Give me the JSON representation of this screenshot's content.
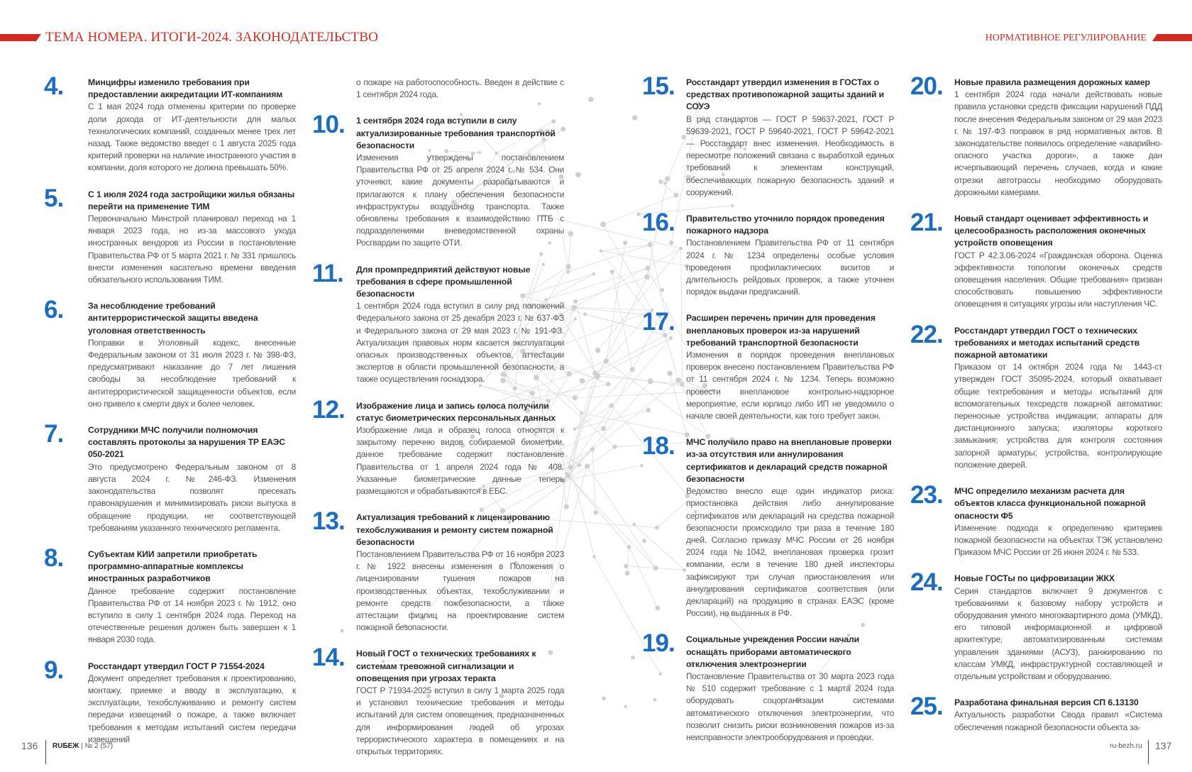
{
  "header": {
    "title": "ТЕМА НОМЕРА. ИТОГИ-2024. ЗАКОНОДАТЕЛЬСТВО",
    "section": "НОРМАТИВНОЕ РЕГУЛИРОВАНИЕ",
    "accent_color": "#d42a1e"
  },
  "number_color": "#1a6cc4",
  "columns": [
    {
      "continuation": "",
      "items": [
        {
          "num": "4",
          "title": "Минцифры изменило требования при предоставлении аккредитации ИТ-компаниям",
          "body": "С 1 мая 2024 года отменены критерии по проверке доли дохода от ИТ-деятельности для малых технологических компаний, созданных менее трех лет назад. Также ведомство введет с 1 августа 2025 года критерий проверки на наличие иностранного участия в компании, доля которого не должна превышать 50%."
        },
        {
          "num": "5",
          "title": "С 1 июля 2024 года застройщики жилья обязаны перейти на применение ТИМ",
          "body": "Первоначально Минстрой планировал переход на 1 января 2023 года, но из-за массового ухода иностранных вендоров из России в постановление Правительства РФ от 5 марта 2021 г. № 331 пришлось внести изменения касательно времени введения обязательного использования ТИМ."
        },
        {
          "num": "6",
          "title": "За несоблюдение требований антитеррористической защиты введена уголовная ответственность",
          "body": "Поправки в Уголовный кодекс, внесенные Федеральным законом от 31 июля 2023 г. № 398-ФЗ, предусматривают наказание до 7 лет лишения свободы за несоблюдение требований к антитеррористической защищенности объектов, если оно привело к смерти двух и более человек."
        },
        {
          "num": "7",
          "title": "Сотрудники МЧС получили полномочия составлять протоколы за нарушения ТР ЕАЭС 050-2021",
          "body": "Это предусмотрено Федеральным законом от 8 августа 2024 г. №246-ФЗ. Изменения законодательства позволят пресекать правонарушения и минимизировать риски выпуска в обращение продукции, не соответствующей требованиям указанного технического регламента."
        },
        {
          "num": "8",
          "title": "Субъектам КИИ запретили приобретать программно-аппаратные комплексы иностранных разработчиков",
          "body": "Данное требование содержит постановление Правительства РФ от 14 ноября 2023 г. № 1912, оно вступило в силу 1 сентября 2024 года. Переход на отечественные решения должен быть завершен к 1 января 2030 года."
        },
        {
          "num": "9",
          "title": "Росстандарт утвердил ГОСТ Р 71554-2024",
          "body": "Документ определяет требования к проектированию, монтажу, приемке и вводу в эксплуатацию, к эксплуатации, техобслуживанию и ремонту систем передачи извещений о пожаре, а также включает требования к методам испытаний систем передачи извещений"
        }
      ]
    },
    {
      "continuation": "о пожаре на работоспособность. Введен в действие с 1 сентября 2024 года.",
      "items": [
        {
          "num": "10",
          "title": "1 сентября 2024 года вступили в силу актуализированные требования транспортной безопасности",
          "body": "Изменения утверждены постановлением Правительства РФ от 25 апреля 2024 г. № 534. Они уточняют, какие документы разрабатываются и прилагаются к плану обеспечения безопасности инфраструктуры воздушного транспорта. Также обновлены требования к взаимодействию ПТБ с подразделениями вневедомственной охраны Росгвардии по защите ОТИ."
        },
        {
          "num": "11",
          "title": "Для промпредприятий действуют новые требования в сфере промышленной безопасности",
          "body": "1 сентября 2024 года вступил в силу ряд положений Федерального закона от 25 декабря 2023 г. № 637-ФЗ и Федерального закона от 29 мая 2023 г. № 191-ФЗ. Актуализация правовых норм касается эксплуатации опасных производственных объектов, аттестации экспертов в области промышленной безопасности, а также осуществления госнадзора."
        },
        {
          "num": "12",
          "title": "Изображение лица и запись голоса получили статус биометрических персональных данных",
          "body": "Изображение лица и образец голоса относятся к закрытому перечню видов собираемой биометрии, данное требование содержит постановление Правительства от 1 апреля 2024 года № 408. Указанные биометрические данные теперь размещаются и обрабатываются в ЕБС."
        },
        {
          "num": "13",
          "title": "Актуализация требований к лицензированию техобслуживания и ремонту систем пожарной безопасности",
          "body": "Постановлением Правительства РФ от 16 ноября 2023 г. № 1922 внесены изменения в Положения о лицензировании тушения пожаров на производственных объектах, техобслуживании и ремонте средств пожбезопасности, а также аттестации физлиц на проектирование систем пожарной безопасности."
        },
        {
          "num": "14",
          "title": "Новый ГОСТ о технических требованиях к системам тревожной сигнализации и оповещения при угрозах теракта",
          "body": "ГОСТ Р 71934-2025 вступил в силу 1 марта 2025 года и установил технические требования и методы испытаний для систем оповещения, предназначенных для информирования людей об угрозах террористического характера в помещениях и на открытых территориях."
        }
      ]
    },
    {
      "continuation": "",
      "items": [
        {
          "num": "15",
          "title": "Росстандарт утвердил изменения в ГОСТах о средствах противопожарной защиты зданий и СОУЭ",
          "body": "В ряд стандартов — ГОСТ Р 59637-2021, ГОСТ Р 59639-2021, ГОСТ Р 59640-2021, ГОСТ Р 59642-2021 — Росстандарт внес изменения. Необходимость в пересмотре положений связана с выработкой единых требований к элементам конструкций, обеспечивающих пожарную безопасность зданий и сооружений."
        },
        {
          "num": "16",
          "title": "Правительство уточнило порядок проведения пожарного надзора",
          "body": "Постановлением Правительства РФ от 11 сентября 2024 г. № 1234 определены особые условия проведения профилактических визитов и длительность рейдовых проверок, а также уточнен порядок выдачи предписаний."
        },
        {
          "num": "17",
          "title": "Расширен перечень причин для проведения внеплановых проверок из-за нарушений требований транспортной безопасности",
          "body": "Изменения в порядок проведения внеплановых проверок внесено постановлением Правительства РФ от 11 сентября 2024 г. № 1234. Теперь возможно провести внеплановое контрольно-надзорное мероприятие, если юрлицо либо ИП не уведомило о начале своей деятельности, как того требует закон."
        },
        {
          "num": "18",
          "title": "МЧС получило право на внеплановые проверки из-за отсутствия или аннулирования сертификатов и деклараций средств пожарной безопасности",
          "body": "Ведомство внесло еще один индикатор риска: приостановка действия либо аннулирование сертификатов или деклараций на средства пожарной безопасности происходило три раза в течение 180 дней. Согласно приказу МЧС России от 26 ноября 2024 года №1042, внеплановая проверка грозит компании, если в течение 180 дней инспекторы зафиксируют три случая приостановления или аннулирования сертификатов соответствия (или деклараций) на продукцию в странах ЕАЭС (кроме России), но выданных в РФ."
        },
        {
          "num": "19",
          "title": "Социальные учреждения России начали оснащать приборами автоматического отключения электроэнергии",
          "body": "Постановление Правительства от 30 марта 2023 года № 510 содержит требование с 1 марта 2024 года оборудовать соцорганизации системами автоматического отключения электроэнергии, что позволит снизить риски возникновения пожаров из-за неисправности электрооборудования и проводки."
        }
      ]
    },
    {
      "continuation": "",
      "items": [
        {
          "num": "20",
          "title": "Новые правила размещения дорожных камер",
          "body": "1 сентября 2024 года начали действовать новые правила установки средств фиксации нарушений ПДД после внесения Федеральным законом от 29 мая 2023 г. № 197-ФЗ поправок в ряд нормативных актов. В законодательстве появилось определение «аварийно-опасного участка дороги», а также дан исчерпывающий перечень случаев, когда и какие отрезки автотрассы необходимо оборудовать дорожными камерами."
        },
        {
          "num": "21",
          "title": "Новый стандарт оценивает эффективность и целесообразность расположения оконечных устройств оповещения",
          "body": "ГОСТ Р 42.3.06-2024 «Гражданская оборона. Оценка эффективности топологии оконечных средств оповещения населения. Общие требования» призван способствовать повышению эффективности оповещения в ситуациях угрозы или наступления ЧС."
        },
        {
          "num": "22",
          "title": "Росстандарт утвердил ГОСТ о технических требованиях и методах испытаний средств пожарной автоматики",
          "body": "Приказом от 14 октября 2024 года № 1443-ст утвержден ГОСТ 35095-2024, который охватывает общие техтребования и методы испытаний для вспомогательных техсредств пожарной автоматики: переносные устройства индикации; аппараты для дистанционного запуска; изоляторы короткого замыкания; устройства для контроля состояния запорной арматуры; устройства, контролирующие положение дверей."
        },
        {
          "num": "23",
          "title": "МЧС определило механизм расчета для объектов класса функциональной пожарной опасности Ф5",
          "body": "Изменение подхода к определению критериев пожарной безопасности на объектах ТЭК установлено Приказом МЧС России от 26 июня 2024 г. № 533."
        },
        {
          "num": "24",
          "title": "Новые ГОСТы по цифровизации ЖКХ",
          "body": "Серия стандартов включает 9 документов с требованиями к базовому набору устройств и оборудования умного многоквартирного дома (УМКД), его типовой информационной и цифровой архитектуре, автоматизированным системам управления зданиями (АСУЗ), ранжированию по классам УМКД, инфраструктурной составляющей и отдельным устройствам и оборудованию."
        },
        {
          "num": "25",
          "title": "Разработана финальная версия СП 6.13130",
          "body": "Актуальность разработки Свода правил «Система обеспечения пожарной безопасности объекта за-"
        }
      ]
    }
  ],
  "footer": {
    "left_page": "136",
    "magazine": "RUБЕЖ",
    "issue": "| № 2 (57)",
    "site": "ru-bezh.ru",
    "right_page": "137"
  }
}
